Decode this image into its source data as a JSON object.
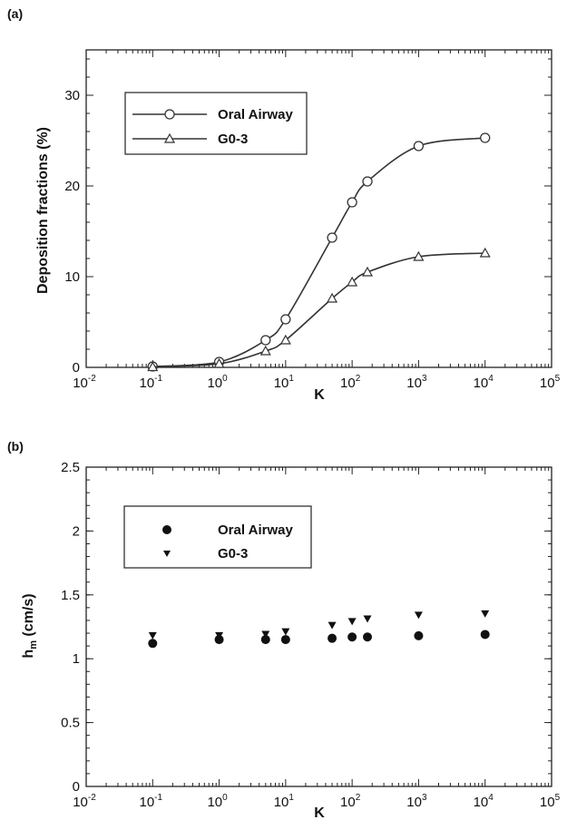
{
  "chart_data": [
    {
      "panel_label": "(a)",
      "type": "line",
      "xlabel": "K",
      "ylabel": "Deposition fractions (%)",
      "xscale": "log",
      "xlim": [
        0.01,
        100000
      ],
      "ylim": [
        0,
        35
      ],
      "yticks": [
        0,
        10,
        20,
        30
      ],
      "xticks": [
        {
          "base": "10",
          "exp": "-2"
        },
        {
          "base": "10",
          "exp": "-1"
        },
        {
          "base": "10",
          "exp": "0"
        },
        {
          "base": "10",
          "exp": "1"
        },
        {
          "base": "10",
          "exp": "2"
        },
        {
          "base": "10",
          "exp": "3"
        },
        {
          "base": "10",
          "exp": "4"
        },
        {
          "base": "10",
          "exp": "5"
        }
      ],
      "legend_position": "upper-left",
      "series": [
        {
          "name": "Oral Airway",
          "marker": "circle",
          "x": [
            0.1,
            1,
            5,
            10,
            50,
            100,
            170,
            1000,
            10000
          ],
          "y": [
            0.1,
            0.6,
            3.0,
            5.3,
            14.3,
            18.2,
            20.5,
            24.4,
            25.3
          ]
        },
        {
          "name": "G0-3",
          "marker": "triangle",
          "x": [
            0.1,
            1,
            5,
            10,
            50,
            100,
            170,
            1000,
            10000
          ],
          "y": [
            0.05,
            0.4,
            1.8,
            3.0,
            7.6,
            9.4,
            10.5,
            12.2,
            12.6
          ]
        }
      ]
    },
    {
      "panel_label": "(b)",
      "type": "scatter",
      "xlabel": "K",
      "ylabel_main": "h",
      "ylabel_sub": "m",
      "ylabel_unit": " (cm/s)",
      "xscale": "log",
      "xlim": [
        0.01,
        100000
      ],
      "ylim": [
        0,
        2.5
      ],
      "yticks": [
        "0",
        "0.5",
        "1",
        "1.5",
        "2",
        "2.5"
      ],
      "xticks": [
        {
          "base": "10",
          "exp": "-2"
        },
        {
          "base": "10",
          "exp": "-1"
        },
        {
          "base": "10",
          "exp": "0"
        },
        {
          "base": "10",
          "exp": "1"
        },
        {
          "base": "10",
          "exp": "2"
        },
        {
          "base": "10",
          "exp": "3"
        },
        {
          "base": "10",
          "exp": "4"
        },
        {
          "base": "10",
          "exp": "5"
        }
      ],
      "legend_position": "upper-left",
      "series": [
        {
          "name": "Oral Airway",
          "marker": "filled-circle",
          "x": [
            0.1,
            1,
            5,
            10,
            50,
            100,
            170,
            1000,
            10000
          ],
          "y": [
            1.12,
            1.15,
            1.15,
            1.15,
            1.16,
            1.17,
            1.17,
            1.18,
            1.19
          ]
        },
        {
          "name": "G0-3",
          "marker": "filled-triangle-down",
          "x": [
            0.1,
            1,
            5,
            10,
            50,
            100,
            170,
            1000,
            10000
          ],
          "y": [
            1.18,
            1.18,
            1.19,
            1.21,
            1.26,
            1.29,
            1.31,
            1.34,
            1.35
          ]
        }
      ]
    }
  ]
}
